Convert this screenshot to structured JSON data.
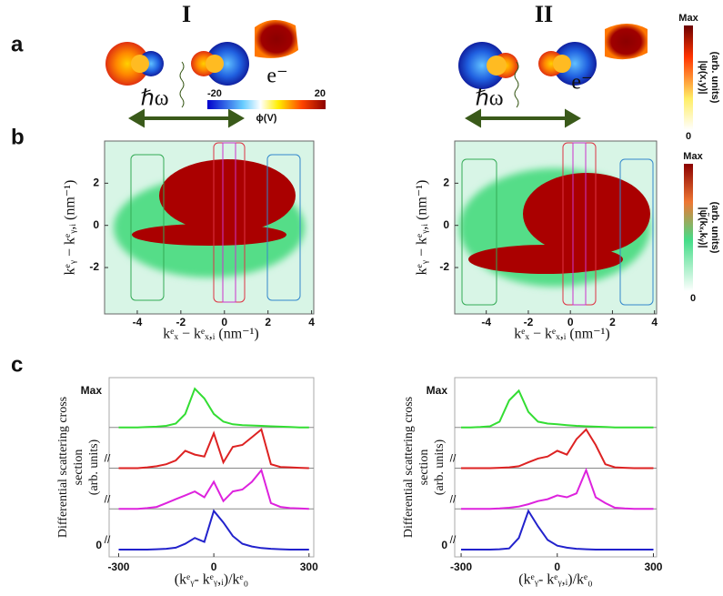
{
  "column_titles": [
    "I",
    "II"
  ],
  "panel_labels": [
    "a",
    "b",
    "c"
  ],
  "panel_a": {
    "photon": "ℏω",
    "electron": "e⁻",
    "phi_colorbar": {
      "label": "ϕ(V)",
      "ticks": [
        -20,
        20
      ]
    },
    "psi_colorbar": {
      "label": "|ψ(x,y)|",
      "unit": "(arb. units)",
      "max": "Max",
      "min": "0"
    }
  },
  "panel_b": {
    "xlabel": "kᵉₓ − kᵉₓ,ᵢ (nm⁻¹)",
    "ylabel": "kᵉᵧ − kᵉᵧ,ᵢ (nm⁻¹)",
    "xlim": [
      -5.5,
      4.1
    ],
    "xticks": [
      -4,
      -2,
      0,
      2,
      4
    ],
    "ylim": [
      -4.2,
      4
    ],
    "yticks": [
      -2,
      0,
      2
    ],
    "colorbar": {
      "label": "|ψ̃(kₓ,kᵧ)|",
      "unit": "(arb. units)",
      "max": "Max",
      "min": "0"
    }
  },
  "chart_data": [
    {
      "type": "line",
      "xlabel": "(kᵉᵧ- kᵉᵧ,ᵢ)/kᵉ₀",
      "ylabel": [
        "Differential scattering cross",
        "section",
        "(arb. units)"
      ],
      "y_labels": [
        "Max",
        "0"
      ],
      "xlim": [
        -330,
        315
      ],
      "xticks": [
        -300,
        0,
        300
      ],
      "x": [
        -300,
        -270,
        -240,
        -210,
        -180,
        -150,
        -120,
        -90,
        -60,
        -30,
        0,
        30,
        60,
        90,
        120,
        150,
        180,
        210,
        240,
        270,
        300
      ],
      "series": [
        {
          "color": "#33dd33",
          "values": [
            0,
            0,
            0,
            0.01,
            0.02,
            0.04,
            0.1,
            0.35,
            1.0,
            0.75,
            0.35,
            0.15,
            0.08,
            0.06,
            0.05,
            0.04,
            0.03,
            0.02,
            0.01,
            0,
            0
          ]
        },
        {
          "color": "#dd2222",
          "values": [
            0,
            0,
            0,
            0.02,
            0.05,
            0.1,
            0.2,
            0.45,
            0.35,
            0.3,
            0.9,
            0.15,
            0.55,
            0.6,
            0.8,
            1.0,
            0.1,
            0.03,
            0.02,
            0.01,
            0
          ]
        },
        {
          "color": "#dd22dd",
          "values": [
            0,
            0,
            0,
            0.02,
            0.05,
            0.15,
            0.25,
            0.35,
            0.45,
            0.3,
            0.7,
            0.2,
            0.45,
            0.5,
            0.7,
            1.0,
            0.15,
            0.05,
            0.02,
            0.01,
            0
          ]
        },
        {
          "color": "#2222cc",
          "values": [
            0,
            0,
            0,
            0,
            0.01,
            0.02,
            0.05,
            0.15,
            0.3,
            0.2,
            1.0,
            0.7,
            0.35,
            0.15,
            0.08,
            0.04,
            0.02,
            0.01,
            0,
            0,
            0
          ]
        }
      ]
    },
    {
      "type": "line",
      "xlabel": "(kᵉᵧ- kᵉᵧ,ᵢ)/kᵉ₀",
      "ylabel": [
        "Differential scattering cross",
        "section",
        "(arb. units)"
      ],
      "y_labels": [
        "Max",
        "0"
      ],
      "xlim": [
        -320,
        310
      ],
      "xticks": [
        -300,
        0,
        300
      ],
      "x": [
        -300,
        -270,
        -240,
        -210,
        -180,
        -150,
        -120,
        -90,
        -60,
        -30,
        0,
        30,
        60,
        90,
        120,
        150,
        180,
        210,
        240,
        270,
        300
      ],
      "series": [
        {
          "color": "#33dd33",
          "values": [
            0,
            0,
            0.01,
            0.03,
            0.15,
            0.7,
            0.95,
            0.4,
            0.15,
            0.1,
            0.08,
            0.06,
            0.04,
            0.03,
            0.02,
            0.01,
            0,
            0,
            0,
            0,
            0
          ]
        },
        {
          "color": "#dd2222",
          "values": [
            0,
            0,
            0,
            0,
            0.01,
            0.02,
            0.05,
            0.15,
            0.25,
            0.3,
            0.45,
            0.35,
            0.75,
            1.0,
            0.6,
            0.1,
            0.02,
            0.01,
            0,
            0,
            0
          ]
        },
        {
          "color": "#dd22dd",
          "values": [
            0,
            0,
            0,
            0,
            0.01,
            0.03,
            0.06,
            0.12,
            0.2,
            0.25,
            0.35,
            0.3,
            0.4,
            1.0,
            0.3,
            0.15,
            0.03,
            0.01,
            0,
            0,
            0
          ]
        },
        {
          "color": "#2222cc",
          "values": [
            0,
            0,
            0,
            0,
            0.01,
            0.03,
            0.3,
            1.0,
            0.6,
            0.25,
            0.1,
            0.05,
            0.02,
            0.01,
            0,
            0,
            0,
            0,
            0,
            0,
            0
          ]
        }
      ]
    }
  ]
}
